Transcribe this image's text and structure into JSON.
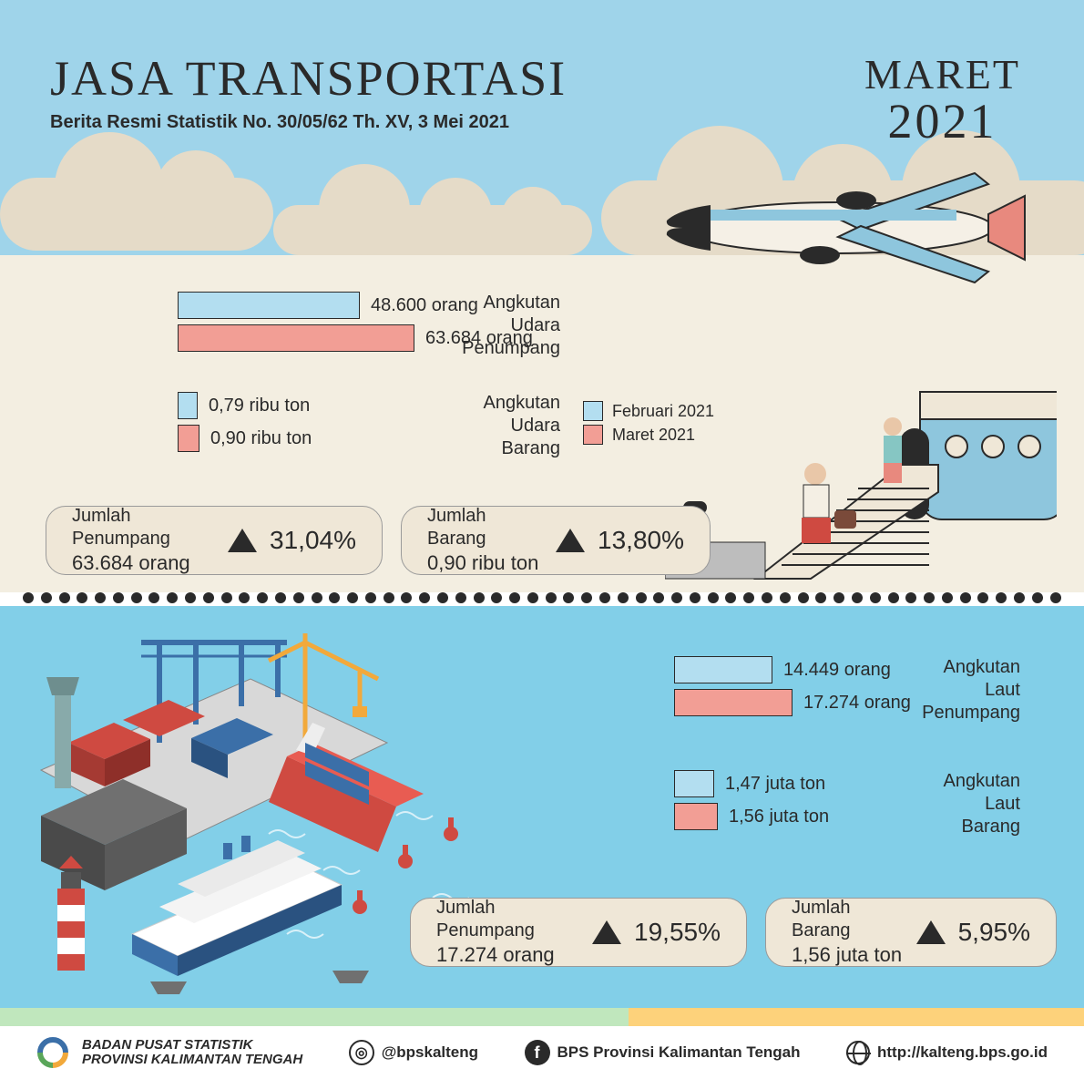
{
  "colors": {
    "sky": "#9fd4ea",
    "cloud": "#e5dbc8",
    "sand": "#f3eee1",
    "sea": "#82cfe8",
    "darktext": "#2a2a2a",
    "feb": "#b3def0",
    "mar": "#f29e95",
    "statbg": "#efe7d7",
    "stripeA": "#c0e7bd",
    "stripeB": "#fdd27b"
  },
  "header": {
    "title": "JASA TRANSPORTASI",
    "subtitle": "Berita Resmi Statistik No. 30/05/62 Th. XV, 3 Mei 2021",
    "period_month": "MARET",
    "period_year": "2021"
  },
  "legend": {
    "feb": "Februari 2021",
    "mar": "Maret 2021"
  },
  "air": {
    "penumpang": {
      "category_l1": "Angkutan",
      "category_l2": "Udara",
      "category_l3": "Penumpang",
      "feb_label": "48.600 orang",
      "mar_label": "63.684 orang",
      "feb_width": 200,
      "mar_width": 260
    },
    "barang": {
      "category_l1": "Angkutan",
      "category_l2": "Udara",
      "category_l3": "Barang",
      "feb_label": "0,79 ribu ton",
      "mar_label": "0,90 ribu ton",
      "feb_width": 22,
      "mar_width": 24
    },
    "stat_passenger": {
      "label": "Jumlah Penumpang",
      "value": "63.684 orang",
      "pct": "31,04%"
    },
    "stat_goods": {
      "label": "Jumlah Barang",
      "value": "0,90 ribu ton",
      "pct": "13,80%"
    }
  },
  "sea": {
    "penumpang": {
      "category_l1": "Angkutan",
      "category_l2": "Laut",
      "category_l3": "Penumpang",
      "feb_label": "14.449 orang",
      "mar_label": "17.274 orang",
      "feb_width": 108,
      "mar_width": 130
    },
    "barang": {
      "category_l1": "Angkutan",
      "category_l2": "Laut",
      "category_l3": "Barang",
      "feb_label": "1,47 juta ton",
      "mar_label": "1,56 juta ton",
      "feb_width": 44,
      "mar_width": 48
    },
    "stat_passenger": {
      "label": "Jumlah Penumpang",
      "value": "17.274 orang",
      "pct": "19,55%"
    },
    "stat_goods": {
      "label": "Jumlah Barang",
      "value": "1,56 juta ton",
      "pct": "5,95%"
    }
  },
  "footer": {
    "org_l1": "BADAN PUSAT STATISTIK",
    "org_l2": "PROVINSI KALIMANTAN TENGAH",
    "instagram": "@bpskalteng",
    "facebook": "BPS Provinsi Kalimantan Tengah",
    "url": "http://kalteng.bps.go.id"
  }
}
